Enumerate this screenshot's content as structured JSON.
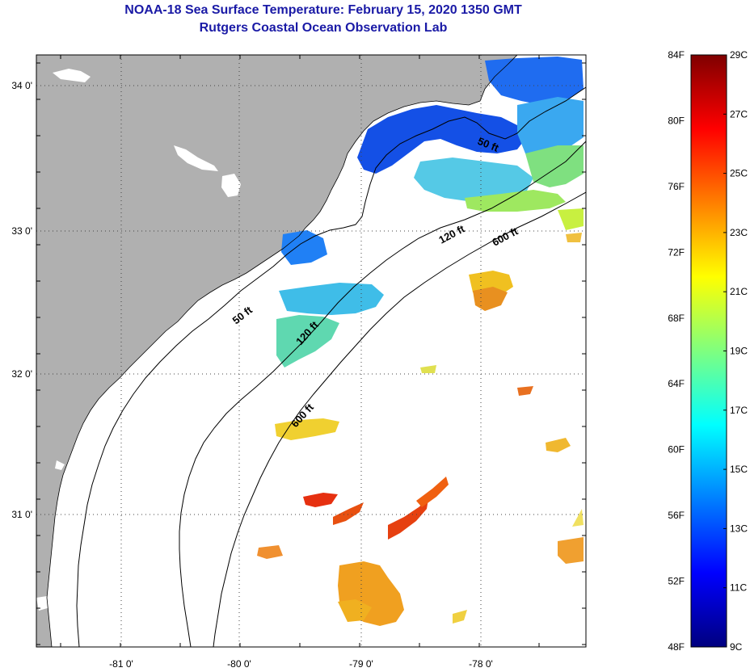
{
  "title": {
    "line1": "NOAA-18 Sea Surface Temperature:  February 15, 2020 1350 GMT",
    "line2": "Rutgers Coastal Ocean Observation Lab"
  },
  "map": {
    "lon_range": [
      -81.7,
      -77.0
    ],
    "lat_range": [
      30.2,
      34.2
    ],
    "lon_ticks": [
      {
        "value": -81,
        "label": "-81 0'"
      },
      {
        "value": -80,
        "label": "-80 0'"
      },
      {
        "value": -79,
        "label": "-79 0'"
      },
      {
        "value": -78,
        "label": "-78 0'"
      }
    ],
    "lat_ticks": [
      {
        "value": 34,
        "label": "34 0'"
      },
      {
        "value": 33,
        "label": "33 0'"
      },
      {
        "value": 32,
        "label": "32 0'"
      },
      {
        "value": 31,
        "label": "31 0'"
      }
    ],
    "grid": "dotted",
    "land_color": "#b0b0b0",
    "contours": [
      {
        "label": "50 ft"
      },
      {
        "label": "120 ft"
      },
      {
        "label": "600 ft"
      }
    ],
    "contour_label_texts": [
      "50 ft",
      "120 ft",
      "600 ft",
      "50 ft",
      "120 ft",
      "600 ft"
    ]
  },
  "colorbar": {
    "fahrenheit_labels": [
      "84F",
      "80F",
      "76F",
      "72F",
      "68F",
      "64F",
      "60F",
      "56F",
      "52F",
      "48F"
    ],
    "celsius_labels": [
      "29C",
      "27C",
      "25C",
      "23C",
      "21C",
      "19C",
      "17C",
      "15C",
      "13C",
      "11C",
      "9C"
    ],
    "colormap": "jet",
    "range_c": [
      9,
      29
    ]
  }
}
